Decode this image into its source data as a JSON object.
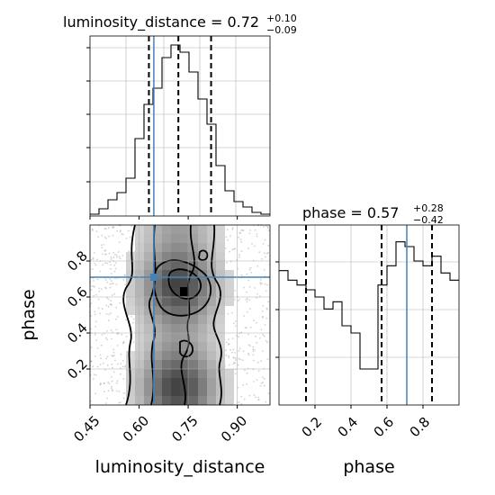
{
  "chart_data": [
    {
      "type": "histogram",
      "panel": "luminosity_distance marginal",
      "title_param": "luminosity_distance",
      "title_value": "0.72",
      "title_err_plus": "+0.10",
      "title_err_minus": "−0.09",
      "xlim": [
        0.45,
        1.0
      ],
      "quantile_lines": [
        0.63,
        0.72,
        0.82
      ],
      "truth_line": 0.645,
      "bin_edges": [
        0.45,
        0.4775,
        0.505,
        0.5325,
        0.56,
        0.5875,
        0.615,
        0.6425,
        0.67,
        0.6975,
        0.725,
        0.7525,
        0.78,
        0.8075,
        0.835,
        0.8625,
        0.89,
        0.9175,
        0.945,
        0.9725,
        1.0
      ],
      "values": [
        1,
        4,
        9,
        13,
        21,
        43,
        62,
        71,
        88,
        95,
        91,
        80,
        65,
        51,
        28,
        14,
        8,
        5,
        2,
        1
      ],
      "grid": true
    },
    {
      "type": "heatmap",
      "panel": "luminosity_distance vs phase joint density",
      "xlabel": "luminosity_distance",
      "ylabel": "phase",
      "xlim": [
        0.45,
        1.0
      ],
      "ylim": [
        0.0,
        1.0
      ],
      "xticks": [
        "0.45",
        "0.60",
        "0.75",
        "0.90"
      ],
      "xtick_values": [
        0.45,
        0.6,
        0.75,
        0.9
      ],
      "yticks": [
        "0.2",
        "0.4",
        "0.6",
        "0.8"
      ],
      "ytick_values": [
        0.2,
        0.4,
        0.6,
        0.8
      ],
      "truth_point": [
        0.645,
        0.71
      ],
      "note": "2D density of posterior samples with contour levels; dense region near phase 0.6-0.75 and 0.0-0.25",
      "grid": true
    },
    {
      "type": "histogram",
      "panel": "phase marginal",
      "title_param": "phase",
      "title_value": "0.57",
      "title_err_plus": "+0.28",
      "title_err_minus": "−0.42",
      "xlabel": "phase",
      "xlim": [
        0.0,
        1.0
      ],
      "xticks": [
        "0.2",
        "0.4",
        "0.6",
        "0.8"
      ],
      "xtick_values": [
        0.2,
        0.4,
        0.6,
        0.8
      ],
      "quantile_lines": [
        0.15,
        0.57,
        0.85
      ],
      "truth_line": 0.71,
      "bin_edges": [
        0,
        0.05,
        0.1,
        0.15,
        0.2,
        0.25,
        0.3,
        0.35,
        0.4,
        0.45,
        0.5,
        0.55,
        0.6,
        0.65,
        0.7,
        0.75,
        0.8,
        0.85,
        0.9,
        0.95,
        1.0
      ],
      "values": [
        56,
        52,
        50,
        48,
        45,
        40,
        43,
        33,
        30,
        15,
        15,
        50,
        58,
        68,
        66,
        60,
        58,
        62,
        55,
        52
      ],
      "grid": true
    }
  ],
  "colors": {
    "truth": "#4682b4",
    "hist": "#000000",
    "grid": "#b0b0b0"
  }
}
